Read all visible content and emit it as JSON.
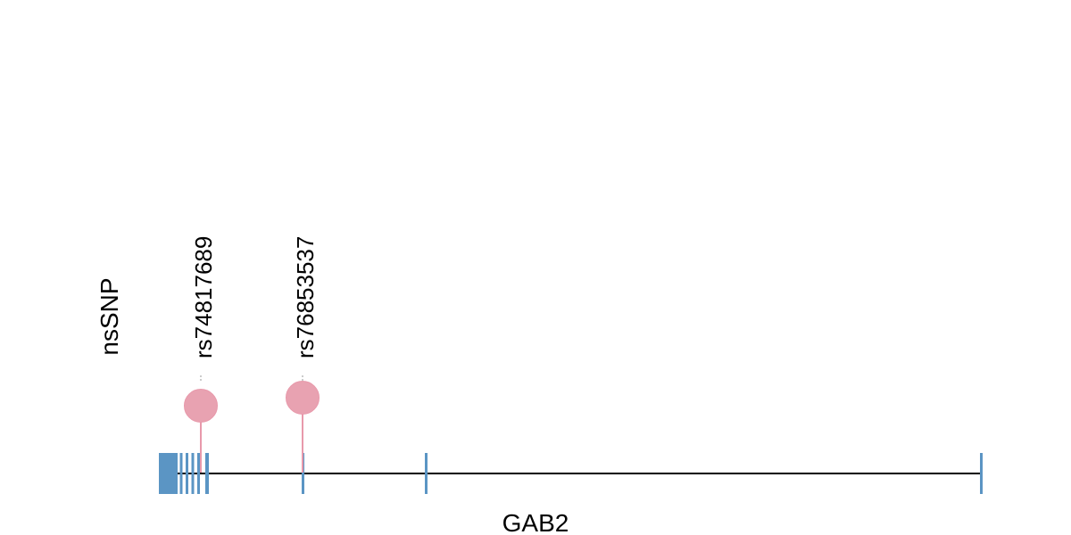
{
  "track_label": "nsSNP",
  "snps": [
    {
      "label": "rs74817689"
    },
    {
      "label": "rs76853537"
    }
  ],
  "gene": {
    "label": "GAB2"
  }
}
